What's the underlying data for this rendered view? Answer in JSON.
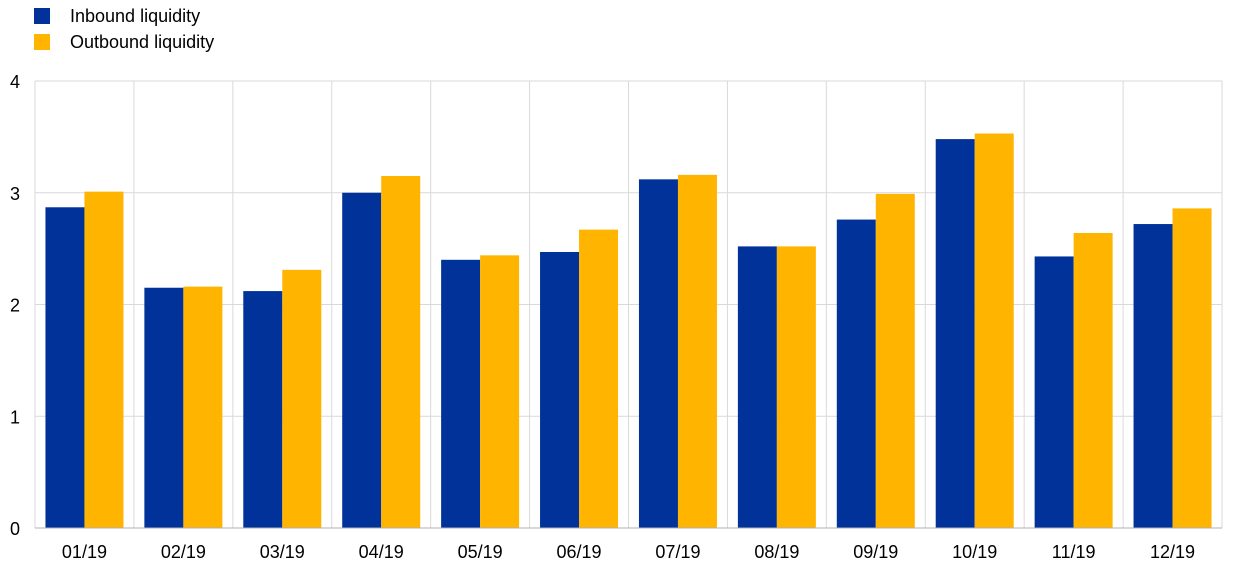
{
  "chart_data": {
    "type": "bar",
    "title": "",
    "xlabel": "",
    "ylabel": "",
    "categories": [
      "01/19",
      "02/19",
      "03/19",
      "04/19",
      "05/19",
      "06/19",
      "07/19",
      "08/19",
      "09/19",
      "10/19",
      "11/19",
      "12/19"
    ],
    "series": [
      {
        "name": "Inbound liquidity",
        "color": "#003299",
        "values": [
          2.87,
          2.15,
          2.12,
          3.0,
          2.4,
          2.47,
          3.12,
          2.52,
          2.76,
          3.48,
          2.43,
          2.72
        ]
      },
      {
        "name": "Outbound liquidity",
        "color": "#FFB400",
        "values": [
          3.01,
          2.16,
          2.31,
          3.15,
          2.44,
          2.67,
          3.16,
          2.52,
          2.99,
          3.53,
          2.64,
          2.86
        ]
      }
    ],
    "ylim": [
      0,
      4
    ],
    "yticks": [
      "0",
      "1",
      "2",
      "3",
      "4"
    ],
    "grid": true,
    "legend_position": "top-left"
  }
}
